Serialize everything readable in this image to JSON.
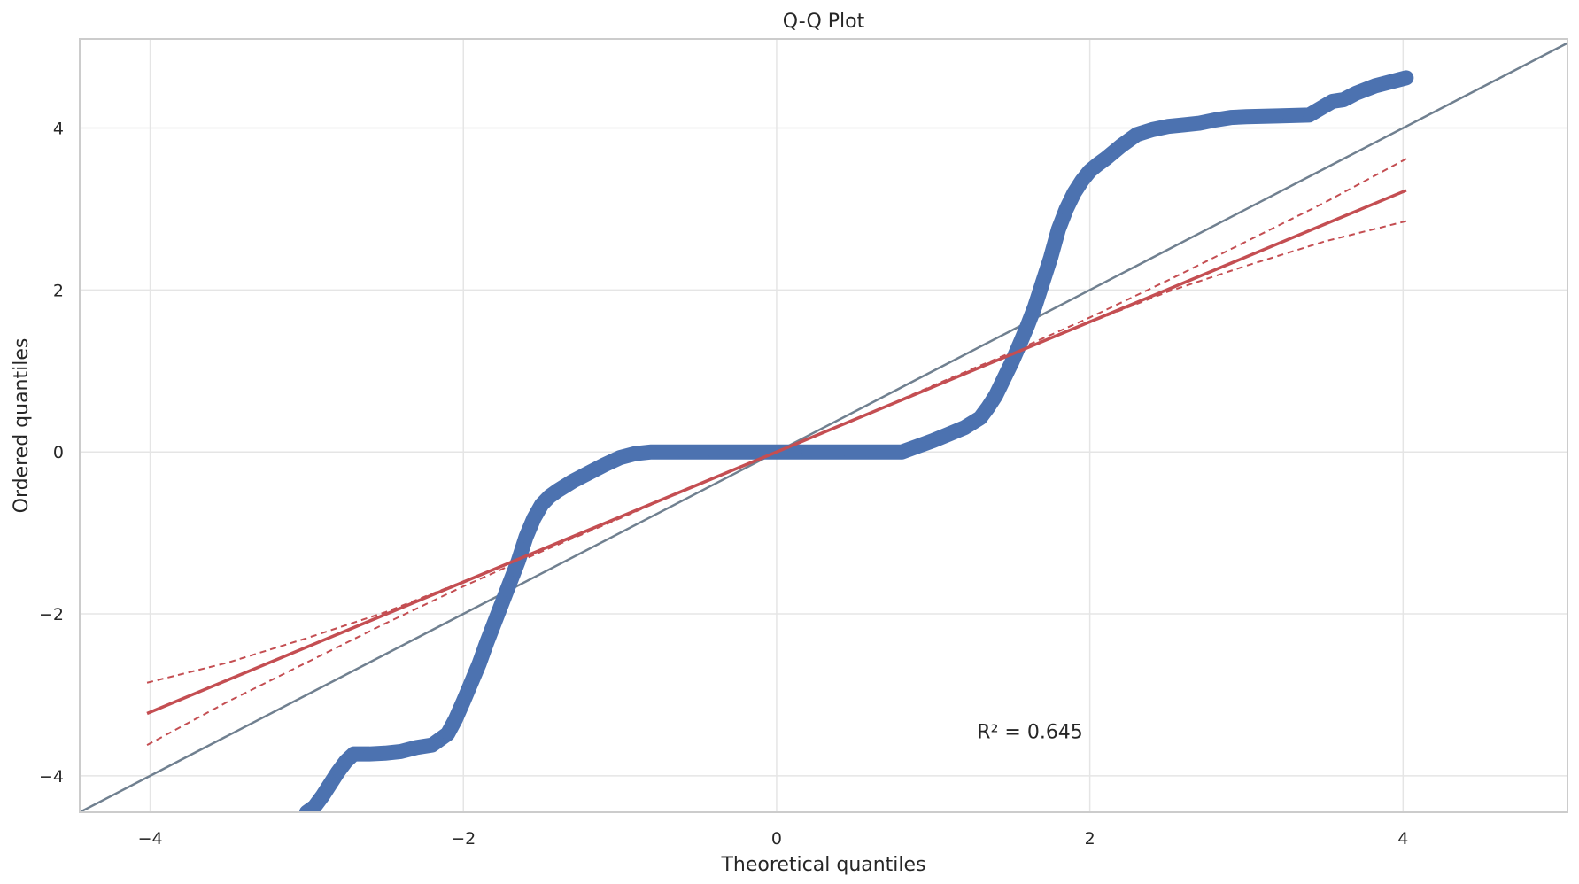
{
  "chart_data": {
    "type": "scatter",
    "title": "Q-Q Plot",
    "xlabel": "Theoretical quantiles",
    "ylabel": "Ordered quantiles",
    "xlim": [
      -4.45,
      5.05
    ],
    "ylim": [
      -4.45,
      5.1
    ],
    "xticks": [
      -4,
      -2,
      0,
      2,
      4
    ],
    "yticks": [
      -4,
      -2,
      0,
      2,
      4
    ],
    "xtick_labels": [
      "−4",
      "−2",
      "0",
      "2",
      "4"
    ],
    "ytick_labels": [
      "−4",
      "−2",
      "0",
      "2",
      "4"
    ],
    "grid": true,
    "annotation": {
      "text": "R² = 0.645",
      "x": 1.28,
      "y": -3.45
    },
    "reference_line": {
      "x": [
        -4.45,
        5.05
      ],
      "y": [
        -4.45,
        5.05
      ],
      "color": "#708090"
    },
    "fit_line": {
      "x": [
        -4.02,
        4.02
      ],
      "y": [
        -3.23,
        3.23
      ],
      "color": "#c44e52"
    },
    "confidence_band": {
      "upper": {
        "x": [
          -4.02,
          -3.5,
          -3.0,
          -2.5,
          -2.0,
          -1.5,
          -1.0,
          -0.5,
          0.0,
          0.5,
          1.0,
          1.5,
          2.0,
          2.5,
          3.0,
          3.5,
          4.02
        ],
        "y": [
          -2.85,
          -2.6,
          -2.3,
          -1.98,
          -1.6,
          -1.2,
          -0.8,
          -0.4,
          0.0,
          0.4,
          0.82,
          1.23,
          1.66,
          2.12,
          2.6,
          3.08,
          3.62
        ]
      },
      "lower": {
        "x": [
          -4.02,
          -3.5,
          -3.0,
          -2.5,
          -2.0,
          -1.5,
          -1.0,
          -0.5,
          0.0,
          0.5,
          1.0,
          1.5,
          2.0,
          2.5,
          3.0,
          3.5,
          4.02
        ],
        "y": [
          -3.62,
          -3.08,
          -2.6,
          -2.12,
          -1.66,
          -1.23,
          -0.82,
          -0.4,
          0.0,
          0.4,
          0.8,
          1.2,
          1.6,
          1.98,
          2.3,
          2.6,
          2.85
        ]
      },
      "color": "#c44e52"
    },
    "series": [
      {
        "color": "#4c72b0",
        "x": [
          -3.0,
          -2.95,
          -2.9,
          -2.85,
          -2.8,
          -2.75,
          -2.7,
          -2.6,
          -2.5,
          -2.4,
          -2.3,
          -2.2,
          -2.1,
          -2.05,
          -2.0,
          -1.95,
          -1.9,
          -1.85,
          -1.8,
          -1.75,
          -1.7,
          -1.65,
          -1.6,
          -1.55,
          -1.5,
          -1.45,
          -1.4,
          -1.35,
          -1.3,
          -1.2,
          -1.1,
          -1.0,
          -0.9,
          -0.8,
          -0.6,
          -0.4,
          -0.2,
          0.0,
          0.2,
          0.4,
          0.6,
          0.8,
          0.9,
          1.0,
          1.1,
          1.2,
          1.3,
          1.35,
          1.4,
          1.45,
          1.5,
          1.55,
          1.6,
          1.65,
          1.7,
          1.75,
          1.8,
          1.85,
          1.9,
          1.95,
          2.0,
          2.05,
          2.1,
          2.2,
          2.3,
          2.4,
          2.5,
          2.6,
          2.7,
          2.8,
          2.9,
          3.0,
          3.2,
          3.4,
          3.55,
          3.62,
          3.7,
          3.82,
          4.02
        ],
        "y": [
          -4.45,
          -4.38,
          -4.25,
          -4.1,
          -3.95,
          -3.82,
          -3.73,
          -3.73,
          -3.72,
          -3.7,
          -3.65,
          -3.62,
          -3.48,
          -3.3,
          -3.08,
          -2.85,
          -2.62,
          -2.35,
          -2.1,
          -1.85,
          -1.6,
          -1.35,
          -1.05,
          -0.82,
          -0.65,
          -0.55,
          -0.48,
          -0.42,
          -0.36,
          -0.26,
          -0.16,
          -0.07,
          -0.02,
          0.0,
          0.0,
          0.0,
          0.0,
          0.0,
          0.0,
          0.0,
          0.0,
          0.0,
          0.07,
          0.14,
          0.22,
          0.3,
          0.42,
          0.55,
          0.7,
          0.9,
          1.1,
          1.32,
          1.55,
          1.8,
          2.1,
          2.4,
          2.75,
          3.0,
          3.2,
          3.35,
          3.47,
          3.55,
          3.62,
          3.78,
          3.92,
          3.98,
          4.02,
          4.04,
          4.06,
          4.1,
          4.13,
          4.14,
          4.15,
          4.16,
          4.33,
          4.35,
          4.43,
          4.52,
          4.62
        ]
      }
    ]
  }
}
